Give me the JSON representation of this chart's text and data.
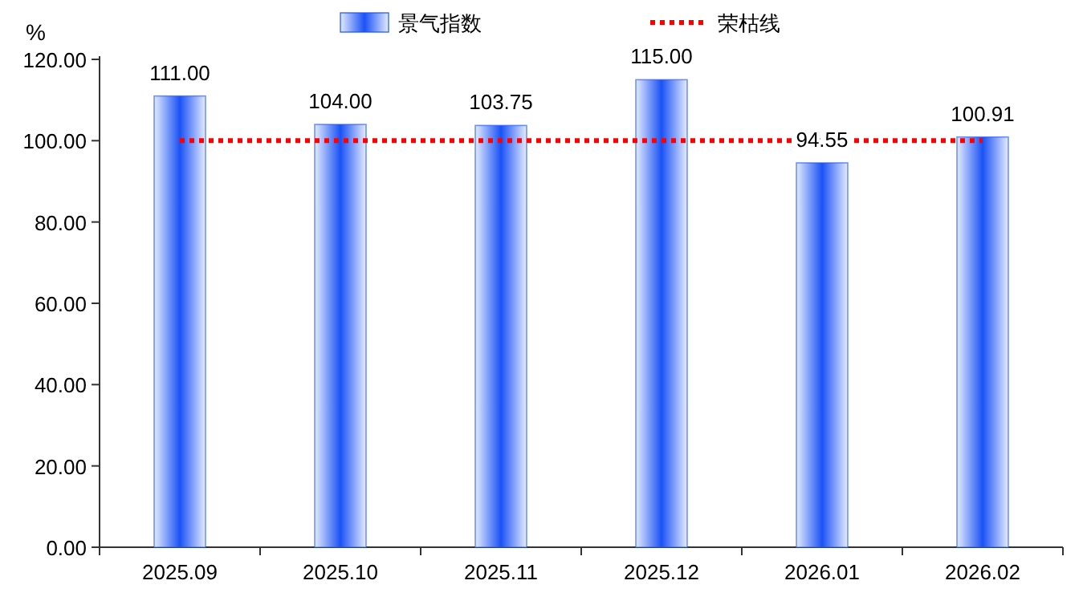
{
  "chart_data": {
    "type": "bar",
    "categories": [
      "2025.09",
      "2025.10",
      "2025.11",
      "2025.12",
      "2026.01",
      "2026.02"
    ],
    "ylabel": "%",
    "ylim": [
      0,
      120
    ],
    "yticks": [
      {
        "value": 0,
        "label": "0.00"
      },
      {
        "value": 20,
        "label": "20.00"
      },
      {
        "value": 40,
        "label": "40.00"
      },
      {
        "value": 60,
        "label": "60.00"
      },
      {
        "value": 80,
        "label": "80.00"
      },
      {
        "value": 100,
        "label": "100.00"
      },
      {
        "value": 120,
        "label": "120.00"
      }
    ],
    "series": [
      {
        "name": "景气指数",
        "color": "#1a52f5",
        "values": [
          111.0,
          104.0,
          103.75,
          115.0,
          94.55,
          100.91
        ],
        "value_labels": [
          "111.00",
          "104.00",
          "103.75",
          "115.00",
          "94.55",
          "100.91"
        ]
      },
      {
        "name": "荣枯线",
        "type": "line",
        "color": "#ff0000",
        "line_style": "dotted",
        "marker": "none",
        "values": [
          100,
          100,
          100,
          100,
          100,
          100
        ]
      }
    ],
    "legend": "top",
    "grid": false
  }
}
